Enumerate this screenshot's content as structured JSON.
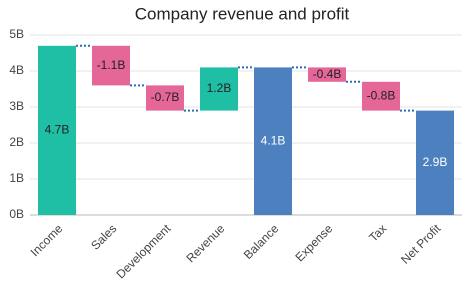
{
  "chart_data": {
    "type": "waterfall",
    "title": "Company revenue and profit",
    "categories": [
      "Income",
      "Sales",
      "Development",
      "Revenue",
      "Balance",
      "Expense",
      "Tax",
      "Net Profit"
    ],
    "values": [
      4.7,
      -1.1,
      -0.7,
      1.2,
      4.1,
      -0.4,
      -0.8,
      2.9
    ],
    "value_labels": [
      "4.7B",
      "-1.1B",
      "-0.7B",
      "1.2B",
      "4.1B",
      "-0.4B",
      "-0.8B",
      "2.9B"
    ],
    "sum_indexes": [
      4,
      7
    ],
    "colors": {
      "increase": "#1fbfa6",
      "decrease": "#e5679a",
      "total": "#4d80bf"
    },
    "ylim": [
      0,
      5
    ],
    "yticks": [
      {
        "value": 0,
        "label": "0B"
      },
      {
        "value": 1,
        "label": "1B"
      },
      {
        "value": 2,
        "label": "2B"
      },
      {
        "value": 3,
        "label": "3B"
      },
      {
        "value": 4,
        "label": "4B"
      },
      {
        "value": 5,
        "label": "5B"
      }
    ],
    "grid": true
  }
}
